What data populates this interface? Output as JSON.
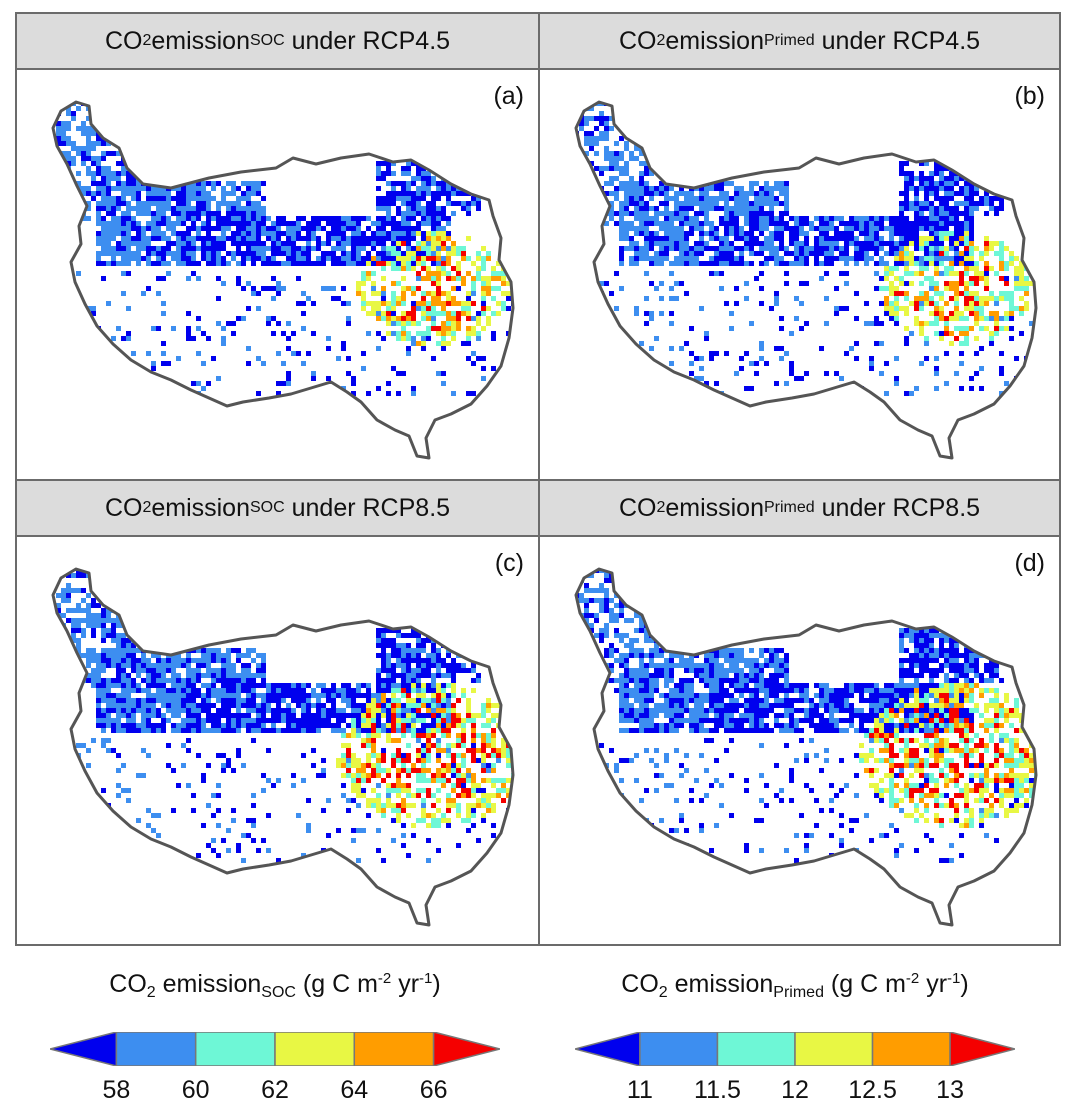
{
  "panels": [
    {
      "id": "a",
      "title_prefix": "CO",
      "title_sub2": "2",
      "title_mid": " emission",
      "title_sub": "SOC",
      "title_suffix": " under RCP4.5",
      "label": "(a)",
      "variant": 0
    },
    {
      "id": "b",
      "title_prefix": "CO",
      "title_sub2": "2",
      "title_mid": " emission",
      "title_sub": "Primed",
      "title_suffix": " under RCP4.5",
      "label": "(b)",
      "variant": 1
    },
    {
      "id": "c",
      "title_prefix": "CO",
      "title_sub2": "2",
      "title_mid": " emission",
      "title_sub": "SOC",
      "title_suffix": " under RCP8.5",
      "label": "(c)",
      "variant": 2
    },
    {
      "id": "d",
      "title_prefix": "CO",
      "title_sub2": "2",
      "title_mid": " emission",
      "title_sub": "Primed",
      "title_suffix": " under RCP8.5",
      "label": "(d)",
      "variant": 3
    }
  ],
  "legends": [
    {
      "prefix": "CO",
      "sub2": "2",
      "mid": " emission",
      "sub": "SOC",
      "unit_pre": " (g C m",
      "sup1": "-2",
      "unit_mid": " yr",
      "sup2": "-1",
      "unit_post": ")",
      "ticks": [
        "58",
        "60",
        "62",
        "64",
        "66"
      ]
    },
    {
      "prefix": "CO",
      "sub2": "2",
      "mid": " emission",
      "sub": "Primed",
      "unit_pre": " (g C m",
      "sup1": "-2",
      "unit_mid": " yr",
      "sup2": "-1",
      "unit_post": ")",
      "ticks": [
        "11",
        "11.5",
        "12",
        "12.5",
        "13"
      ]
    }
  ],
  "colors": {
    "classes": [
      "#0000ee",
      "#3d8ef0",
      "#6ef7d6",
      "#e8f744",
      "#ff9d00",
      "#f50000"
    ],
    "outline": "#555555",
    "header_bg": "#dcdcdc",
    "frame": "#6b6b6b"
  }
}
